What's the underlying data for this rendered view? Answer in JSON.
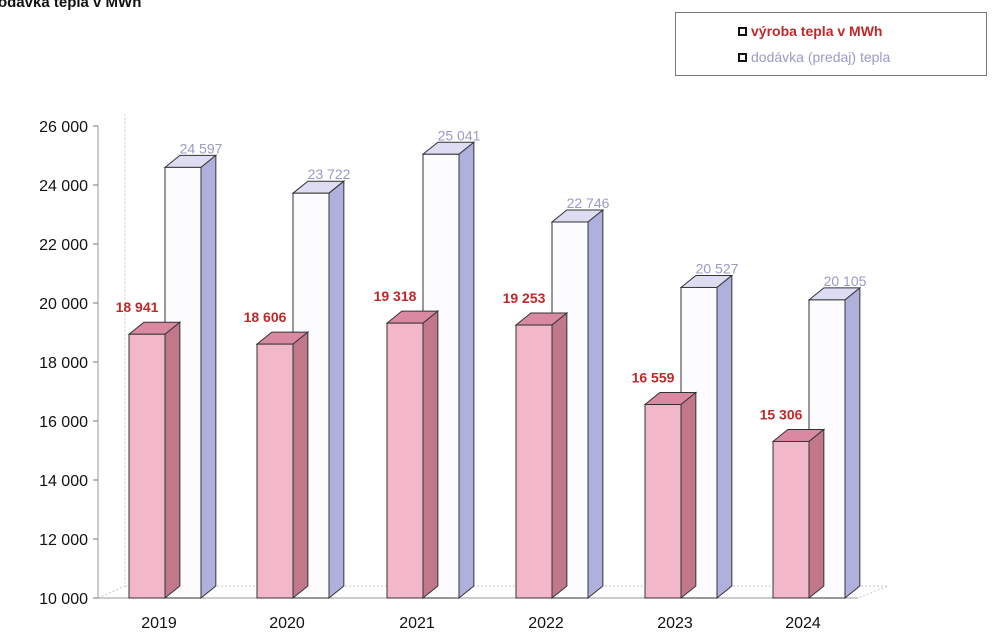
{
  "title": "odávka tepla v MWh",
  "legend": {
    "items": [
      {
        "label": "výroba tepla v MWh",
        "color": "#c0282a"
      },
      {
        "label": "dodávka (predaj) tepla",
        "color": "#9a9ac8"
      }
    ]
  },
  "colors": {
    "bar1_front": "#f2b7c8",
    "bar1_top": "#d98aa0",
    "bar1_side": "#c2788b",
    "bar2_front": "#fcfcff",
    "bar2_top": "#dcdcf2",
    "bar2_side": "#b0b0dc",
    "label1": "#c0282a",
    "label2": "#9a9ac8"
  },
  "chart_data": {
    "type": "bar",
    "categories": [
      "2019",
      "2020",
      "2021",
      "2022",
      "2023",
      "2024"
    ],
    "series": [
      {
        "name": "výroba tepla v MWh",
        "values": [
          18941,
          18606,
          19318,
          19253,
          16559,
          15306
        ],
        "labels": [
          "18 941",
          "18 606",
          "19 318",
          "19 253",
          "16 559",
          "15 306"
        ]
      },
      {
        "name": "dodávka (predaj) tepla",
        "values": [
          24597,
          23722,
          25041,
          22746,
          20527,
          20105
        ],
        "labels": [
          "24 597",
          "23 722",
          "25 041",
          "22 746",
          "20 527",
          "20 105"
        ]
      }
    ],
    "ylim": [
      10000,
      26000
    ],
    "yticks": [
      10000,
      12000,
      14000,
      16000,
      18000,
      20000,
      22000,
      24000,
      26000
    ],
    "ytick_labels": [
      "10 000",
      "12 000",
      "14 000",
      "16 000",
      "18 000",
      "20 000",
      "22 000",
      "24 000",
      "26 000"
    ],
    "legend_position": "top-right",
    "grid": false
  }
}
